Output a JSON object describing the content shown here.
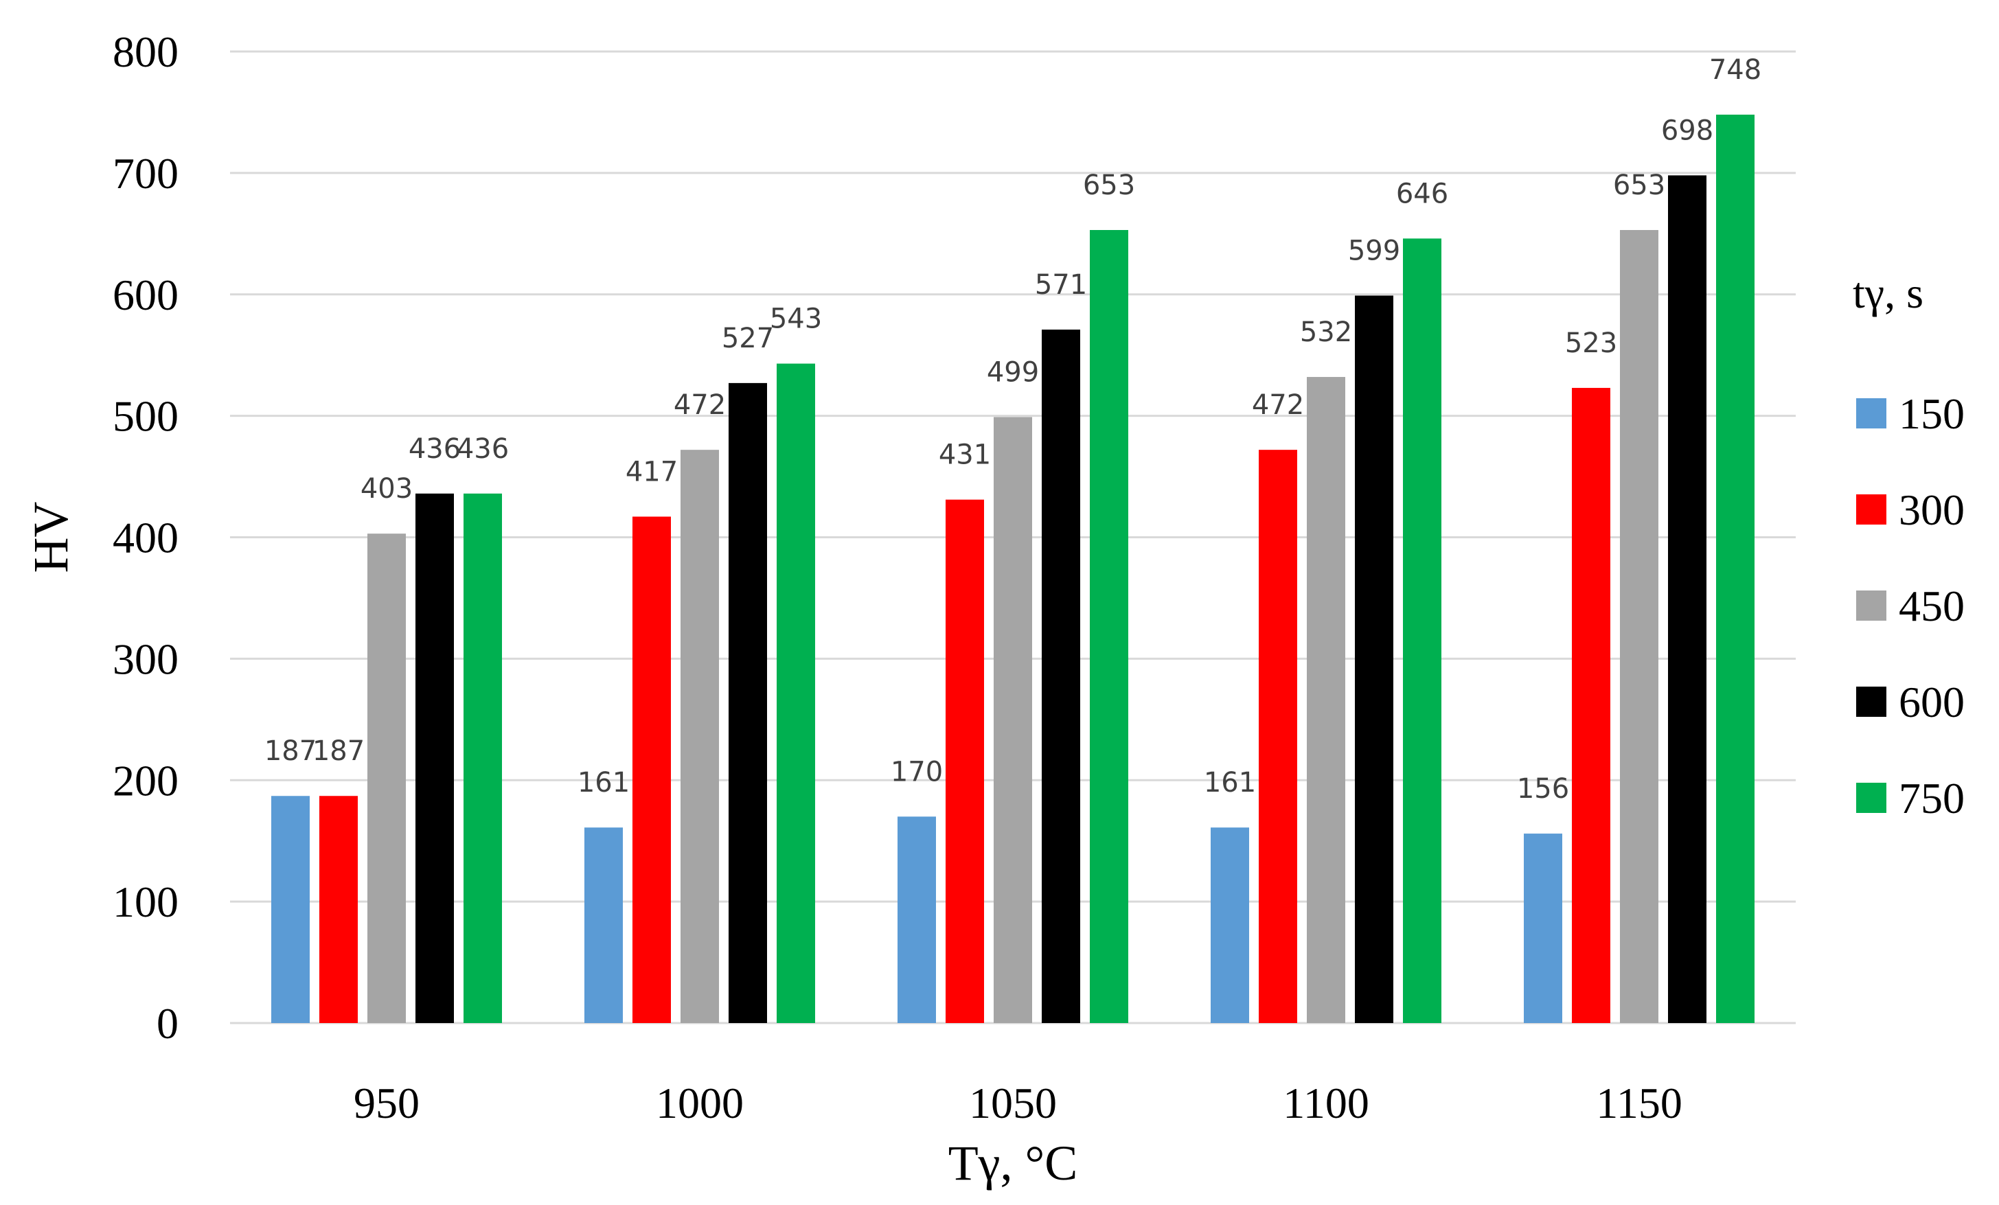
{
  "chart_data": {
    "type": "bar",
    "title": "",
    "xlabel": "Tγ, °C",
    "ylabel": "HV",
    "ylim": [
      0,
      800
    ],
    "yticks": [
      0,
      100,
      200,
      300,
      400,
      500,
      600,
      700,
      800
    ],
    "grid": "horizontal",
    "legend": {
      "title": "tγ, s",
      "position": "right"
    },
    "categories": [
      "950",
      "1000",
      "1050",
      "1100",
      "1150"
    ],
    "series": [
      {
        "name": "150",
        "color": "#5B9BD5",
        "values": [
          187,
          161,
          170,
          161,
          156
        ]
      },
      {
        "name": "300",
        "color": "#FF0000",
        "values": [
          187,
          417,
          431,
          472,
          523
        ]
      },
      {
        "name": "450",
        "color": "#A5A5A5",
        "values": [
          403,
          472,
          499,
          532,
          653
        ]
      },
      {
        "name": "600",
        "color": "#000000",
        "values": [
          436,
          527,
          571,
          599,
          698
        ]
      },
      {
        "name": "750",
        "color": "#00B050",
        "values": [
          436,
          543,
          653,
          646,
          748
        ]
      }
    ]
  }
}
